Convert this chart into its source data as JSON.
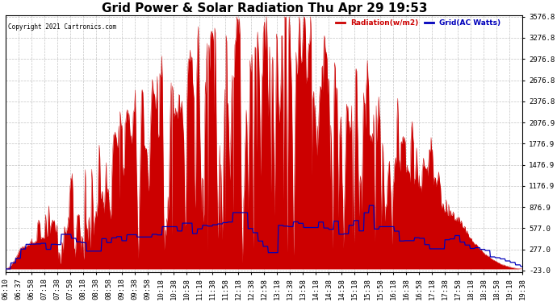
{
  "title": "Grid Power & Solar Radiation Thu Apr 29 19:53",
  "copyright": "Copyright 2021 Cartronics.com",
  "legend_radiation": "Radiation(w/m2)",
  "legend_grid": "Grid(AC Watts)",
  "ylabel_right_values": [
    3576.8,
    3276.8,
    2976.8,
    2676.8,
    2376.8,
    2076.9,
    1776.9,
    1476.9,
    1176.9,
    876.9,
    577.0,
    277.0,
    -23.0
  ],
  "ymin": -23.0,
  "ymax": 3576.8,
  "background_color": "#ffffff",
  "plot_bg_color": "#ffffff",
  "grid_color": "#aaaaaa",
  "radiation_fill_color": "#cc0000",
  "radiation_line_color": "#cc0000",
  "grid_line_color": "#0000bb",
  "title_fontsize": 11,
  "tick_fontsize": 6.5,
  "x_tick_labels": [
    "06:10",
    "06:37",
    "06:58",
    "07:18",
    "07:38",
    "07:58",
    "08:18",
    "08:38",
    "08:58",
    "09:18",
    "09:38",
    "09:58",
    "10:18",
    "10:38",
    "10:58",
    "11:18",
    "11:38",
    "11:58",
    "12:18",
    "12:38",
    "12:58",
    "13:18",
    "13:38",
    "13:58",
    "14:18",
    "14:38",
    "14:58",
    "15:18",
    "15:38",
    "15:58",
    "16:18",
    "16:38",
    "16:58",
    "17:18",
    "17:38",
    "17:58",
    "18:18",
    "18:38",
    "18:58",
    "19:18",
    "19:38"
  ],
  "n_points": 820
}
